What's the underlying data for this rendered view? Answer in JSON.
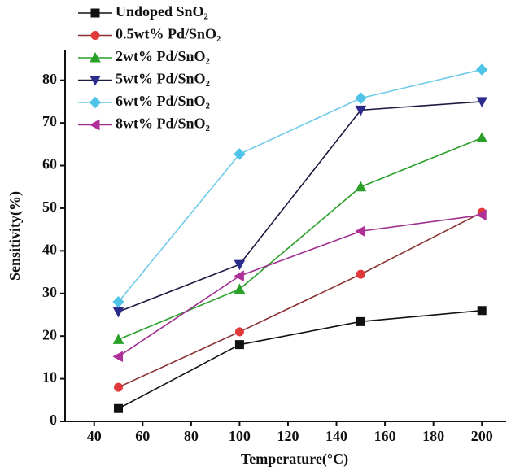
{
  "chart_data": {
    "type": "line",
    "x_label": "Temperature(°C)",
    "y_label": "Sensitivity(%)",
    "x": [
      50,
      100,
      150,
      200
    ],
    "series": [
      {
        "name": "Undoped SnO₂",
        "color": "#111111",
        "line_color": "#111111",
        "marker": "square",
        "values": [
          3.0,
          18,
          23.4,
          26
        ]
      },
      {
        "name": "0.5wt% Pd/SnO₂",
        "color": "#e03a3a",
        "line_color": "#8a3030",
        "marker": "circle",
        "values": [
          8,
          21,
          34.5,
          49
        ]
      },
      {
        "name": "2wt% Pd/SnO₂",
        "color": "#2aa02a",
        "line_color": "#2aa02a",
        "marker": "triangle-up",
        "values": [
          19.2,
          31,
          55,
          66.5
        ]
      },
      {
        "name": "5wt% Pd/SnO₂",
        "color": "#2b2b8c",
        "line_color": "#1a1a40",
        "marker": "triangle-down",
        "values": [
          25.7,
          36.8,
          73,
          75
        ]
      },
      {
        "name": "6wt% Pd/SnO₂",
        "color": "#4fc3e8",
        "line_color": "#6fcbe8",
        "marker": "diamond",
        "values": [
          28,
          62.7,
          75.8,
          82.5
        ]
      },
      {
        "name": "8wt% Pd/SnO₂",
        "color": "#b0309a",
        "line_color": "#a03090",
        "marker": "triangle-left",
        "values": [
          15.2,
          34.1,
          44.6,
          48.4
        ]
      }
    ],
    "xlim": [
      28,
      210
    ],
    "xticks": [
      40,
      60,
      80,
      100,
      120,
      140,
      160,
      180,
      200
    ],
    "ylim": [
      0,
      87
    ],
    "yticks": [
      0,
      10,
      20,
      30,
      40,
      50,
      60,
      70,
      80
    ],
    "grid": false,
    "legend": "top-left"
  }
}
